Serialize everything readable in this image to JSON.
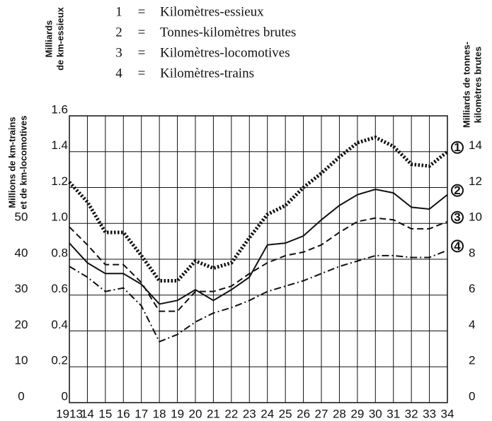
{
  "chart_data": {
    "type": "line",
    "legend_separator": "=",
    "y_title": [
      "Milliards",
      "de km-essieux"
    ],
    "y3_title": [
      "Millions de km-trains",
      "et de km-locomotives"
    ],
    "y2_title": [
      "Milliards de tonnes-",
      "kilomètres brutes"
    ],
    "categories": [
      "1913",
      "14",
      "15",
      "16",
      "17",
      "18",
      "19",
      "20",
      "21",
      "22",
      "23",
      "24",
      "25",
      "26",
      "27",
      "28",
      "29",
      "30",
      "31",
      "32",
      "33",
      "34"
    ],
    "ylim": [
      0,
      1.6
    ],
    "yticks": [
      0,
      0.2,
      0.4,
      0.6,
      0.8,
      {
        "value": 1,
        "label": "1.0"
      },
      1.2,
      1.4,
      1.6
    ],
    "y2lim": [
      0,
      16
    ],
    "y2ticks": [
      0,
      2,
      4,
      6,
      8,
      10,
      12,
      14
    ],
    "y3lim": [
      0,
      80
    ],
    "y3ticks": [
      0,
      10,
      20,
      30,
      40,
      50
    ],
    "grid": true,
    "series": [
      {
        "label": "1",
        "name": "Kilomètres-essieux",
        "color": "#111",
        "style": "dotted",
        "axis": "y",
        "values": [
          1.23,
          1.12,
          0.95,
          0.95,
          0.82,
          0.68,
          0.68,
          0.79,
          0.75,
          0.78,
          0.92,
          1.05,
          1.1,
          1.2,
          1.28,
          1.37,
          1.45,
          1.48,
          1.43,
          1.33,
          1.32,
          1.4
        ]
      },
      {
        "label": "2",
        "name": "Tonnes-kilomètres brutes",
        "color": "#111",
        "style": "solid",
        "axis": "y2",
        "values": [
          8.9,
          7.8,
          7.2,
          7.2,
          6.6,
          5.5,
          5.7,
          6.3,
          5.7,
          6.3,
          7.0,
          8.8,
          8.9,
          9.3,
          10.2,
          11.0,
          11.6,
          11.9,
          11.7,
          10.9,
          10.8,
          11.6
        ]
      },
      {
        "label": "3",
        "name": "Kilomètres-locomotives",
        "color": "#111",
        "style": "dashed",
        "axis": "y3",
        "values": [
          49,
          44,
          38.5,
          38.5,
          33.5,
          25.5,
          25.5,
          31,
          31,
          32.5,
          36,
          39,
          41,
          42,
          44,
          47.5,
          50.5,
          51.5,
          51,
          48.5,
          48.5,
          50.5
        ]
      },
      {
        "label": "4",
        "name": "Kilomètres-trains",
        "color": "#111",
        "style": "dashdot",
        "axis": "y3",
        "values": [
          38,
          35,
          31,
          32,
          27,
          17,
          19,
          22.5,
          25,
          26.5,
          28.5,
          31,
          32.5,
          34,
          36,
          38,
          39.5,
          41,
          41,
          40.5,
          40.5,
          42.5
        ]
      }
    ]
  }
}
